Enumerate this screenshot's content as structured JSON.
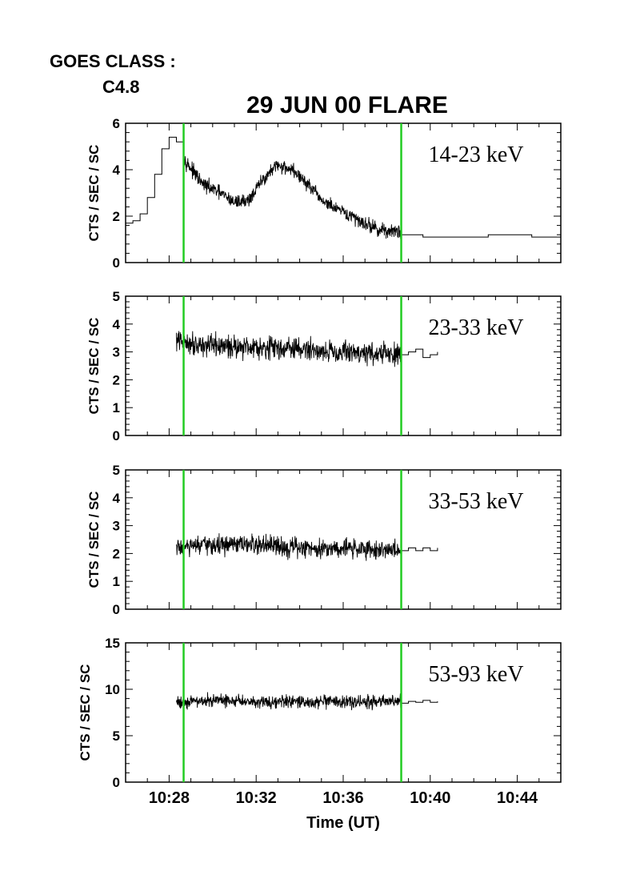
{
  "header": {
    "goes_label": "GOES CLASS :",
    "goes_value": "C4.8",
    "title": "29 JUN 00 FLARE"
  },
  "colors": {
    "marker": "#22cc22",
    "trace": "#000000",
    "axes": "#000000",
    "background": "#ffffff"
  },
  "chart_data": [
    {
      "type": "line",
      "band_label": "14-23 keV",
      "ylabel": "CTS / SEC / SC",
      "ylim": [
        0,
        6
      ],
      "yticks": [
        0,
        2,
        4,
        6
      ],
      "xlim": [
        "10:26",
        "10:46"
      ],
      "xticks": [
        "10:28",
        "10:32",
        "10:36",
        "10:40",
        "10:44"
      ],
      "xtick_labels_shown": false,
      "markers": [
        "10:28:40",
        "10:38:40"
      ],
      "series": [
        {
          "style": "coarse-step",
          "x": [
            "10:26:00",
            "10:26:20",
            "10:26:40",
            "10:27:00",
            "10:27:20",
            "10:27:40",
            "10:28:00",
            "10:28:20",
            "10:28:40"
          ],
          "y": [
            1.7,
            1.8,
            2.1,
            2.8,
            3.8,
            4.9,
            5.4,
            5.2,
            4.7
          ]
        },
        {
          "style": "high-res",
          "x": [
            "10:28:40",
            "10:29:30",
            "10:30:20",
            "10:31:00",
            "10:31:40",
            "10:32:20",
            "10:33:00",
            "10:33:40",
            "10:34:20",
            "10:35:00",
            "10:35:40",
            "10:36:20",
            "10:37:00",
            "10:37:40",
            "10:38:40"
          ],
          "y": [
            4.5,
            3.4,
            3.0,
            2.6,
            2.7,
            3.6,
            4.2,
            4.0,
            3.4,
            2.7,
            2.3,
            2.0,
            1.7,
            1.4,
            1.3
          ],
          "noise": 0.3
        },
        {
          "style": "coarse-step",
          "x": [
            "10:38:40",
            "10:39:40",
            "10:40:40",
            "10:41:40",
            "10:42:40",
            "10:43:40",
            "10:44:40",
            "10:45:40",
            "10:46:00"
          ],
          "y": [
            1.2,
            1.1,
            1.1,
            1.1,
            1.2,
            1.2,
            1.1,
            1.1,
            1.3
          ]
        }
      ]
    },
    {
      "type": "line",
      "band_label": "23-33 keV",
      "ylabel": "CTS / SEC / SC",
      "ylim": [
        0,
        5
      ],
      "yticks": [
        0,
        1,
        2,
        3,
        4,
        5
      ],
      "xlim": [
        "10:26",
        "10:46"
      ],
      "xticks": [
        "10:28",
        "10:32",
        "10:36",
        "10:40",
        "10:44"
      ],
      "xtick_labels_shown": false,
      "markers": [
        "10:28:40",
        "10:38:40"
      ],
      "series": [
        {
          "style": "high-res",
          "x": [
            "10:28:20",
            "10:30:00",
            "10:32:00",
            "10:34:00",
            "10:36:00",
            "10:38:40"
          ],
          "y": [
            3.4,
            3.2,
            3.2,
            3.1,
            3.0,
            2.9
          ],
          "noise": 0.4
        },
        {
          "style": "coarse-step",
          "x": [
            "10:38:40",
            "10:39:00",
            "10:39:20",
            "10:39:40",
            "10:40:00",
            "10:40:20"
          ],
          "y": [
            2.9,
            3.0,
            3.1,
            2.8,
            2.9,
            3.0
          ]
        }
      ]
    },
    {
      "type": "line",
      "band_label": "33-53 keV",
      "ylabel": "CTS / SEC / SC",
      "ylim": [
        0,
        5
      ],
      "yticks": [
        0,
        1,
        2,
        3,
        4,
        5
      ],
      "xlim": [
        "10:26",
        "10:46"
      ],
      "xticks": [
        "10:28",
        "10:32",
        "10:36",
        "10:40",
        "10:44"
      ],
      "xtick_labels_shown": false,
      "markers": [
        "10:28:40",
        "10:38:40"
      ],
      "series": [
        {
          "style": "high-res",
          "x": [
            "10:28:20",
            "10:30:00",
            "10:32:00",
            "10:34:00",
            "10:36:00",
            "10:38:40"
          ],
          "y": [
            2.2,
            2.3,
            2.3,
            2.2,
            2.2,
            2.1
          ],
          "noise": 0.35
        },
        {
          "style": "coarse-step",
          "x": [
            "10:38:40",
            "10:39:00",
            "10:39:20",
            "10:39:40",
            "10:40:00",
            "10:40:20"
          ],
          "y": [
            2.1,
            2.2,
            2.1,
            2.2,
            2.1,
            2.2
          ]
        }
      ]
    },
    {
      "type": "line",
      "band_label": "53-93 keV",
      "ylabel": "CTS / SEC / SC",
      "ylim": [
        0,
        15
      ],
      "yticks": [
        0,
        5,
        10,
        15
      ],
      "xlim": [
        "10:26",
        "10:46"
      ],
      "xticks": [
        "10:28",
        "10:32",
        "10:36",
        "10:40",
        "10:44"
      ],
      "xtick_labels_shown": true,
      "xlabel": "Time (UT)",
      "markers": [
        "10:28:40",
        "10:38:40"
      ],
      "series": [
        {
          "style": "high-res",
          "x": [
            "10:28:20",
            "10:30:00",
            "10:32:00",
            "10:34:00",
            "10:36:00",
            "10:38:40"
          ],
          "y": [
            8.6,
            8.8,
            8.7,
            8.6,
            8.6,
            8.7
          ],
          "noise": 0.7
        },
        {
          "style": "coarse-step",
          "x": [
            "10:38:40",
            "10:39:00",
            "10:39:20",
            "10:39:40",
            "10:40:00",
            "10:40:20"
          ],
          "y": [
            8.5,
            8.7,
            8.6,
            8.8,
            8.6,
            8.7
          ]
        }
      ]
    }
  ]
}
